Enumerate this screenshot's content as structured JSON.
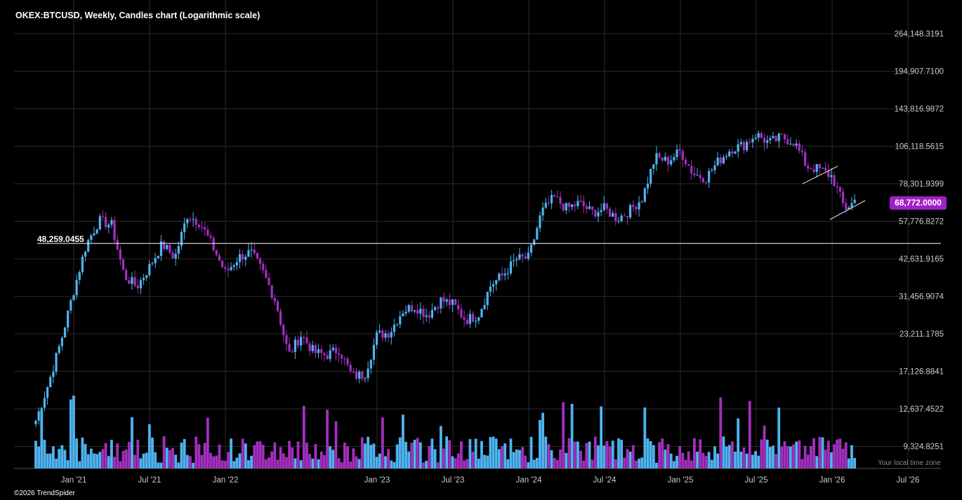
{
  "header": {
    "title": "OKEX:BTCUSD, Weekly, Candles chart (Logarithmic scale)"
  },
  "footer": {
    "copyright": "©2026 TrendSpider",
    "timezone": "Your local time zone"
  },
  "last_price": {
    "label": "68,772.0000",
    "color": "#a020c8"
  },
  "level_line": {
    "label": "48,259.0455",
    "value": 48259.0455
  },
  "colors": {
    "up": "#4fb3f0",
    "down": "#a22fbf",
    "grid": "#2a2a2a",
    "axis_text": "#c8c8c8"
  },
  "chart_data": {
    "type": "candlestick",
    "symbol": "OKEX:BTCUSD",
    "timeframe": "Weekly",
    "scale": "log",
    "grid": true,
    "y_ticks": [
      "264,148.3191",
      "194,907.7100",
      "143,816.9872",
      "106,118.5615",
      "78,301.9399",
      "57,776.8272",
      "42,631.9165",
      "31,456.9074",
      "23,211.1785",
      "17,126.8841",
      "12,637.4522",
      "9,324.8251"
    ],
    "y_tick_values": [
      264148.3191,
      194907.71,
      143816.9872,
      106118.5615,
      78301.9399,
      57776.8272,
      42631.9165,
      31456.9074,
      23211.1785,
      17126.8841,
      12637.4522,
      9324.8251
    ],
    "x_ticks": [
      "Jan '21",
      "Jul '21",
      "Jan '22",
      "Jan '23",
      "Jul '23",
      "Jan '24",
      "Jul '24",
      "Jan '25",
      "Jul '25",
      "Jan '26",
      "Jul '26"
    ],
    "x_tick_dates": [
      "2021-01",
      "2021-07",
      "2022-01",
      "2023-01",
      "2023-07",
      "2024-01",
      "2024-07",
      "2025-01",
      "2025-07",
      "2026-01",
      "2026-07"
    ],
    "anchors": [
      [
        "2020-10",
        11500
      ],
      [
        "2020-11",
        15500
      ],
      [
        "2020-12",
        22000
      ],
      [
        "2021-01",
        33000
      ],
      [
        "2021-02",
        48000
      ],
      [
        "2021-03",
        58000
      ],
      [
        "2021-04",
        56000
      ],
      [
        "2021-05",
        37000
      ],
      [
        "2021-06",
        34000
      ],
      [
        "2021-07",
        40000
      ],
      [
        "2021-08",
        48000
      ],
      [
        "2021-09",
        43000
      ],
      [
        "2021-10",
        61000
      ],
      [
        "2021-11",
        57000
      ],
      [
        "2021-12",
        47000
      ],
      [
        "2022-01",
        38000
      ],
      [
        "2022-02",
        43000
      ],
      [
        "2022-03",
        45000
      ],
      [
        "2022-04",
        38000
      ],
      [
        "2022-05",
        30000
      ],
      [
        "2022-06",
        19500
      ],
      [
        "2022-07",
        23000
      ],
      [
        "2022-08",
        20000
      ],
      [
        "2022-09",
        19500
      ],
      [
        "2022-10",
        20500
      ],
      [
        "2022-11",
        16500
      ],
      [
        "2022-12",
        16600
      ],
      [
        "2023-01",
        23000
      ],
      [
        "2023-02",
        23500
      ],
      [
        "2023-03",
        28000
      ],
      [
        "2023-04",
        29000
      ],
      [
        "2023-05",
        27000
      ],
      [
        "2023-06",
        30500
      ],
      [
        "2023-07",
        29500
      ],
      [
        "2023-08",
        26000
      ],
      [
        "2023-09",
        27000
      ],
      [
        "2023-10",
        34500
      ],
      [
        "2023-11",
        37500
      ],
      [
        "2023-12",
        42500
      ],
      [
        "2024-01",
        43000
      ],
      [
        "2024-02",
        62000
      ],
      [
        "2024-03",
        70000
      ],
      [
        "2024-04",
        64000
      ],
      [
        "2024-05",
        67000
      ],
      [
        "2024-06",
        62000
      ],
      [
        "2024-07",
        64000
      ],
      [
        "2024-08",
        59000
      ],
      [
        "2024-09",
        63000
      ],
      [
        "2024-10",
        70000
      ],
      [
        "2024-11",
        97000
      ],
      [
        "2024-12",
        94000
      ],
      [
        "2025-01",
        102000
      ],
      [
        "2025-02",
        85000
      ],
      [
        "2025-03",
        82000
      ],
      [
        "2025-04",
        94000
      ],
      [
        "2025-05",
        104000
      ],
      [
        "2025-06",
        107000
      ],
      [
        "2025-07",
        117000
      ],
      [
        "2025-08",
        109000
      ],
      [
        "2025-09",
        114000
      ],
      [
        "2025-10",
        110000
      ],
      [
        "2025-11",
        90000
      ],
      [
        "2025-12",
        88000
      ],
      [
        "2026-01",
        83000
      ],
      [
        "2026-02",
        64000
      ],
      [
        "2026-03",
        68772
      ]
    ],
    "last_close": 68772.0
  }
}
